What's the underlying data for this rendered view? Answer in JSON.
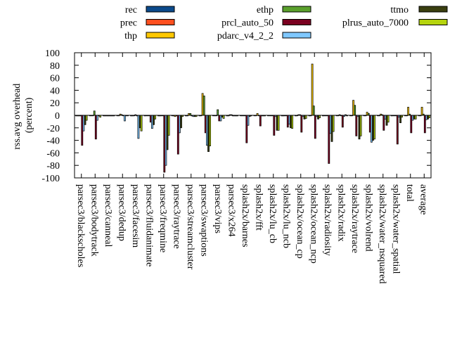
{
  "chart_data": {
    "type": "bar",
    "title": "",
    "xlabel": "",
    "ylabel": "rss.avg overhead\n(percent)",
    "ylim": [
      -100,
      100
    ],
    "yticks": [
      100,
      80,
      60,
      40,
      20,
      0,
      -20,
      -40,
      -60,
      -80,
      -100
    ],
    "grid": false,
    "legend_position": "top",
    "categories": [
      "parsec3/blackscholes",
      "parsec3/bodytrack",
      "parsec3/canneal",
      "parsec3/dedup",
      "parsec3/facesim",
      "parsec3/fluidanimate",
      "parsec3/freqmine",
      "parsec3/raytrace",
      "parsec3/streamcluster",
      "parsec3/swaptions",
      "parsec3/vips",
      "parsec3/x264",
      "splash2x/barnes",
      "splash2x/fft",
      "splash2x/lu_cb",
      "splash2x/lu_ncb",
      "splash2x/ocean_cp",
      "splash2x/ocean_ncp",
      "splash2x/radiosity",
      "splash2x/radix",
      "splash2x/raytrace",
      "splash2x/volrend",
      "splash2x/water_nsquared",
      "splash2x/water_spatial",
      "total",
      "average"
    ],
    "series": [
      {
        "name": "rec",
        "color": "#0b4a8b",
        "values": [
          -1,
          0,
          -1,
          0,
          -1,
          -1,
          -1,
          0,
          -1,
          -1,
          0,
          -1,
          0,
          0,
          0,
          -1,
          -1,
          -1,
          -1,
          0,
          0,
          0,
          0,
          -1,
          0,
          0
        ]
      },
      {
        "name": "prec",
        "color": "#ff4f1f",
        "values": [
          -1,
          0,
          -1,
          0,
          -1,
          0,
          -1,
          -1,
          -1,
          0,
          0,
          -1,
          0,
          0,
          0,
          -1,
          0,
          0,
          0,
          0,
          0,
          0,
          0,
          0,
          0,
          0
        ]
      },
      {
        "name": "thp",
        "color": "#ffc800",
        "values": [
          -1,
          0,
          -1,
          2,
          0,
          0,
          0,
          -2,
          3,
          35,
          0,
          1,
          0,
          3,
          0,
          0,
          1,
          82,
          0,
          1,
          24,
          5,
          2,
          0,
          13,
          13
        ]
      },
      {
        "name": "ethp",
        "color": "#5aa02c",
        "values": [
          -1,
          7,
          -1,
          1,
          1,
          0,
          0,
          0,
          3,
          31,
          9,
          1,
          0,
          0,
          0,
          0,
          1,
          15,
          0,
          0,
          16,
          3,
          1,
          0,
          2,
          2
        ]
      },
      {
        "name": "prcl_auto_50",
        "color": "#7a0020",
        "values": [
          -48,
          -38,
          -1,
          0,
          -1,
          -11,
          -91,
          -62,
          -1,
          -28,
          -9,
          -1,
          -44,
          -17,
          -32,
          -19,
          -27,
          -37,
          -77,
          -19,
          -33,
          -27,
          -24,
          -46,
          -28,
          -28
        ]
      },
      {
        "name": "pdarc_v4_2_2",
        "color": "#7fc8ff",
        "values": [
          -25,
          -8,
          -1,
          -9,
          -37,
          -21,
          -80,
          -28,
          -2,
          -48,
          -9,
          -1,
          -16,
          -1,
          -2,
          -14,
          -2,
          -2,
          -29,
          -2,
          -2,
          -43,
          -6,
          -3,
          -8,
          -7
        ]
      },
      {
        "name": "ttmo",
        "color": "#3a3f0f",
        "values": [
          -15,
          -1,
          -1,
          0,
          -20,
          -15,
          -55,
          -20,
          -2,
          -58,
          -3,
          -1,
          -2,
          -1,
          -24,
          -20,
          -6,
          -6,
          -42,
          1,
          -38,
          -40,
          -16,
          -12,
          -6,
          -6
        ]
      },
      {
        "name": "plrus_auto_7000",
        "color": "#b5d40e",
        "values": [
          -8,
          -3,
          -1,
          0,
          -25,
          -6,
          -32,
          -2,
          -2,
          -49,
          -5,
          -1,
          -1,
          -1,
          -24,
          -21,
          -5,
          -4,
          -26,
          -1,
          -33,
          -38,
          -11,
          -3,
          -6,
          -4
        ]
      }
    ]
  }
}
